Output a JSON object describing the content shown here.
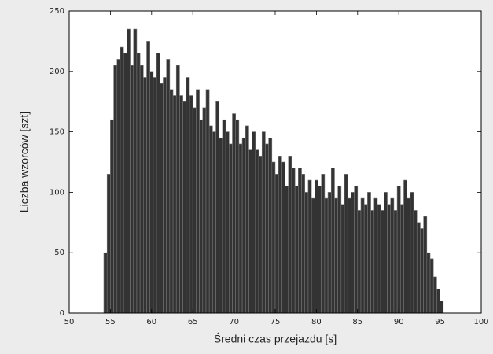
{
  "chart_data": {
    "type": "histogram",
    "xlabel": "Średni czas przejazdu [s]",
    "ylabel": "Liczba wzorców [szt]",
    "bins": [
      54.2,
      54.6,
      55,
      55.4,
      55.8,
      56.2,
      56.6,
      57,
      57.4,
      57.8,
      58.2,
      58.6,
      59,
      59.4,
      59.8,
      60.2,
      60.6,
      61,
      61.4,
      61.8,
      62.2,
      62.6,
      63,
      63.4,
      63.8,
      64.2,
      64.6,
      65,
      65.4,
      65.8,
      66.2,
      66.6,
      67,
      67.4,
      67.8,
      68.2,
      68.6,
      69,
      69.4,
      69.8,
      70.2,
      70.6,
      71,
      71.4,
      71.8,
      72.2,
      72.6,
      73,
      73.4,
      73.8,
      74.2,
      74.6,
      75,
      75.4,
      75.8,
      76.2,
      76.6,
      77,
      77.4,
      77.8,
      78.2,
      78.6,
      79,
      79.4,
      79.8,
      80.2,
      80.6,
      81,
      81.4,
      81.8,
      82.2,
      82.6,
      83,
      83.4,
      83.8,
      84.2,
      84.6,
      85,
      85.4,
      85.8,
      86.2,
      86.6,
      87,
      87.4,
      87.8,
      88.2,
      88.6,
      89,
      89.4,
      89.8,
      90.2,
      90.6,
      91,
      91.4,
      91.8,
      92.2,
      92.6,
      93,
      93.4,
      93.8,
      94.2,
      94.6,
      95,
      95.4
    ],
    "counts": [
      50,
      115,
      160,
      205,
      210,
      220,
      215,
      235,
      205,
      235,
      215,
      205,
      195,
      225,
      200,
      195,
      215,
      190,
      195,
      210,
      185,
      180,
      205,
      180,
      175,
      195,
      180,
      170,
      185,
      160,
      170,
      185,
      155,
      150,
      175,
      145,
      160,
      150,
      140,
      165,
      160,
      140,
      145,
      155,
      135,
      150,
      135,
      130,
      150,
      140,
      145,
      125,
      115,
      130,
      125,
      105,
      130,
      120,
      105,
      120,
      115,
      100,
      110,
      95,
      110,
      105,
      115,
      95,
      100,
      120,
      95,
      105,
      90,
      115,
      95,
      100,
      105,
      85,
      95,
      90,
      100,
      85,
      95,
      90,
      85,
      100,
      90,
      95,
      85,
      105,
      90,
      110,
      95,
      100,
      85,
      75,
      70,
      80,
      50,
      45,
      30,
      20,
      10
    ],
    "color": "#333333",
    "xlim": [
      50,
      100
    ],
    "xticks": [
      50,
      55,
      60,
      65,
      70,
      75,
      80,
      85,
      90,
      95,
      100
    ],
    "ylim": [
      0,
      250
    ],
    "yticks": [
      0,
      50,
      100,
      150,
      200,
      250
    ]
  }
}
